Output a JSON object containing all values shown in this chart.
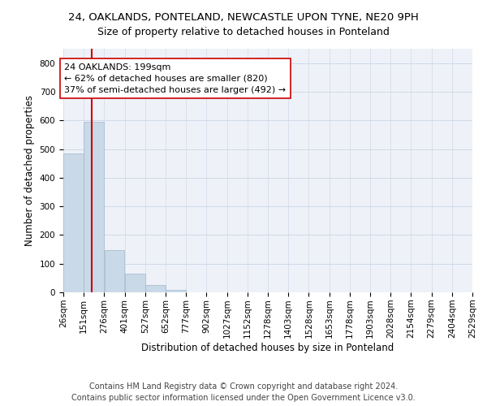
{
  "title": "24, OAKLANDS, PONTELAND, NEWCASTLE UPON TYNE, NE20 9PH",
  "subtitle": "Size of property relative to detached houses in Ponteland",
  "xlabel": "Distribution of detached houses by size in Ponteland",
  "ylabel": "Number of detached properties",
  "bar_edges": [
    26,
    151,
    276,
    401,
    527,
    652,
    777,
    902,
    1027,
    1152,
    1278,
    1403,
    1528,
    1653,
    1778,
    1903,
    2028,
    2154,
    2279,
    2404,
    2529
  ],
  "bar_heights": [
    484,
    594,
    148,
    65,
    25,
    8,
    0,
    0,
    0,
    0,
    0,
    0,
    0,
    0,
    0,
    0,
    0,
    0,
    0,
    0
  ],
  "bar_color": "#c9d9e8",
  "bar_edgecolor": "#a0b8cc",
  "property_size": 199,
  "property_line_color": "#cc0000",
  "annotation_text": "24 OAKLANDS: 199sqm\n← 62% of detached houses are smaller (820)\n37% of semi-detached houses are larger (492) →",
  "annotation_box_edgecolor": "#cc0000",
  "annotation_box_facecolor": "#ffffff",
  "ylim": [
    0,
    850
  ],
  "yticks": [
    0,
    100,
    200,
    300,
    400,
    500,
    600,
    700,
    800
  ],
  "footer_line1": "Contains HM Land Registry data © Crown copyright and database right 2024.",
  "footer_line2": "Contains public sector information licensed under the Open Government Licence v3.0.",
  "bg_color": "#ffffff",
  "grid_color": "#d0d8e8",
  "title_fontsize": 9.5,
  "subtitle_fontsize": 9,
  "axis_label_fontsize": 8.5,
  "tick_fontsize": 7.5,
  "annotation_fontsize": 8,
  "footer_fontsize": 7
}
